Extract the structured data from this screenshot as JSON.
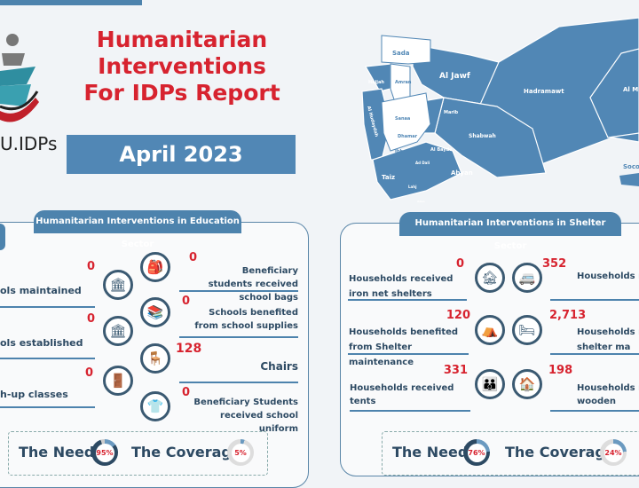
{
  "header": {
    "title_lines": [
      "Humanitarian",
      "Interventions",
      "For IDPs Report"
    ],
    "date": "April 2023",
    "logo_text": "U.IDPs"
  },
  "map": {
    "regions": [
      "Sada",
      "Al Jawf",
      "Hajjah",
      "Amran",
      "Hadramawt",
      "Al Mahrah",
      "Al Hudaydah",
      "Marib",
      "Sanaa",
      "Dhamar",
      "Shabwah",
      "Ibb",
      "Al Bayda",
      "Ad Dali",
      "Taiz",
      "Lahj",
      "Abyan",
      "Aden",
      "Socotra"
    ],
    "color": "#5187b5"
  },
  "education": {
    "title": "Humanitarian Interventions in Education Sector",
    "left": [
      {
        "value": "0",
        "label": "ols maintained",
        "icon": "school-building-icon"
      },
      {
        "value": "0",
        "label": "ols established",
        "icon": "school-building-icon"
      },
      {
        "value": "0",
        "label": "h-up classes",
        "icon": "classroom-door-icon"
      }
    ],
    "right": [
      {
        "value": "0",
        "label": "Beneficiary students received school bags",
        "icon": "backpack-icon"
      },
      {
        "value": "0",
        "label": "Schools benefited from school supplies",
        "icon": "books-icon"
      },
      {
        "value": "128",
        "label": "Chairs",
        "icon": "chair-desk-icon"
      },
      {
        "value": "0",
        "label": "Beneficiary Students received school uniform",
        "icon": "uniform-icon"
      }
    ],
    "need_label": "The Need",
    "need": "95%",
    "need_pct": 95,
    "coverage_label": "The Coverage",
    "coverage": "5%",
    "coverage_pct": 5
  },
  "shelter": {
    "title": "Humanitarian Interventions in Shelter Sector",
    "left": [
      {
        "value": "0",
        "label": "Households received iron net shelters",
        "icon": "iron-shelter-icon"
      },
      {
        "value": "120",
        "label": "Households benefited from Shelter maintenance",
        "icon": "tent-icon"
      },
      {
        "value": "331",
        "label": "Households received tents",
        "icon": "family-house-icon"
      }
    ],
    "right": [
      {
        "value": "352",
        "label": "Households re p",
        "icon": "caravan-icon"
      },
      {
        "value": "2,713",
        "label": "Households re shelter ma",
        "icon": "bed-shelter-icon"
      },
      {
        "value": "198",
        "label": "Households re wooden",
        "icon": "wooden-shelter-icon"
      }
    ],
    "need_label": "The Need",
    "need": "76%",
    "need_pct": 76,
    "coverage_label": "The Coverage",
    "coverage": "24%",
    "coverage_pct": 24
  },
  "colors": {
    "accent": "#4d83ad",
    "red": "#d7232f",
    "dark": "#2d4a63"
  }
}
